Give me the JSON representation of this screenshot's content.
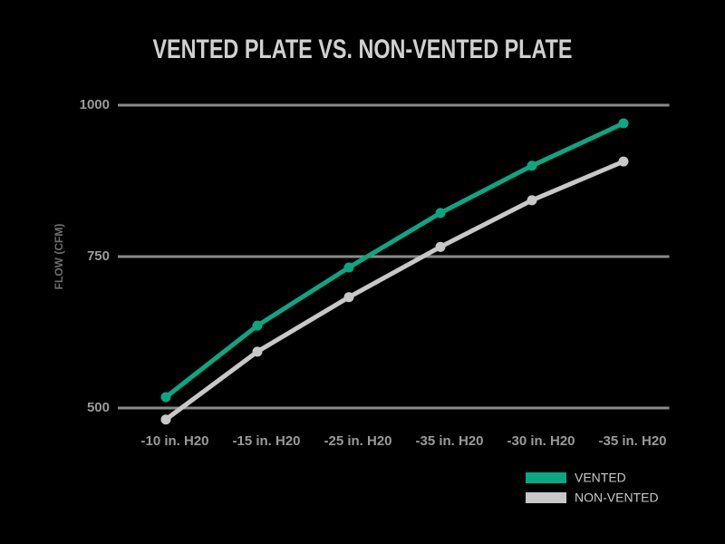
{
  "chart_data": {
    "type": "line",
    "title": "VENTED PLATE VS. NON-VENTED PLATE",
    "y_label": "FLOW (CFM)",
    "categories": [
      "-10 in. H20",
      "-15 in. H20",
      "-25 in. H20",
      "-35 in. H20",
      "-30 in. H20",
      "-35 in. H20"
    ],
    "series": [
      {
        "name": "VENTED",
        "color": "#0aa882",
        "values": [
          518,
          636,
          732,
          822,
          900,
          970
        ]
      },
      {
        "name": "NON-VENTED",
        "color": "#c8c8c8",
        "values": [
          481,
          593,
          683,
          766,
          843,
          907
        ]
      }
    ],
    "ylim": [
      500,
      1000
    ],
    "yticks": [
      500,
      750,
      1000
    ],
    "grid": true,
    "legend": "bottom-right"
  }
}
